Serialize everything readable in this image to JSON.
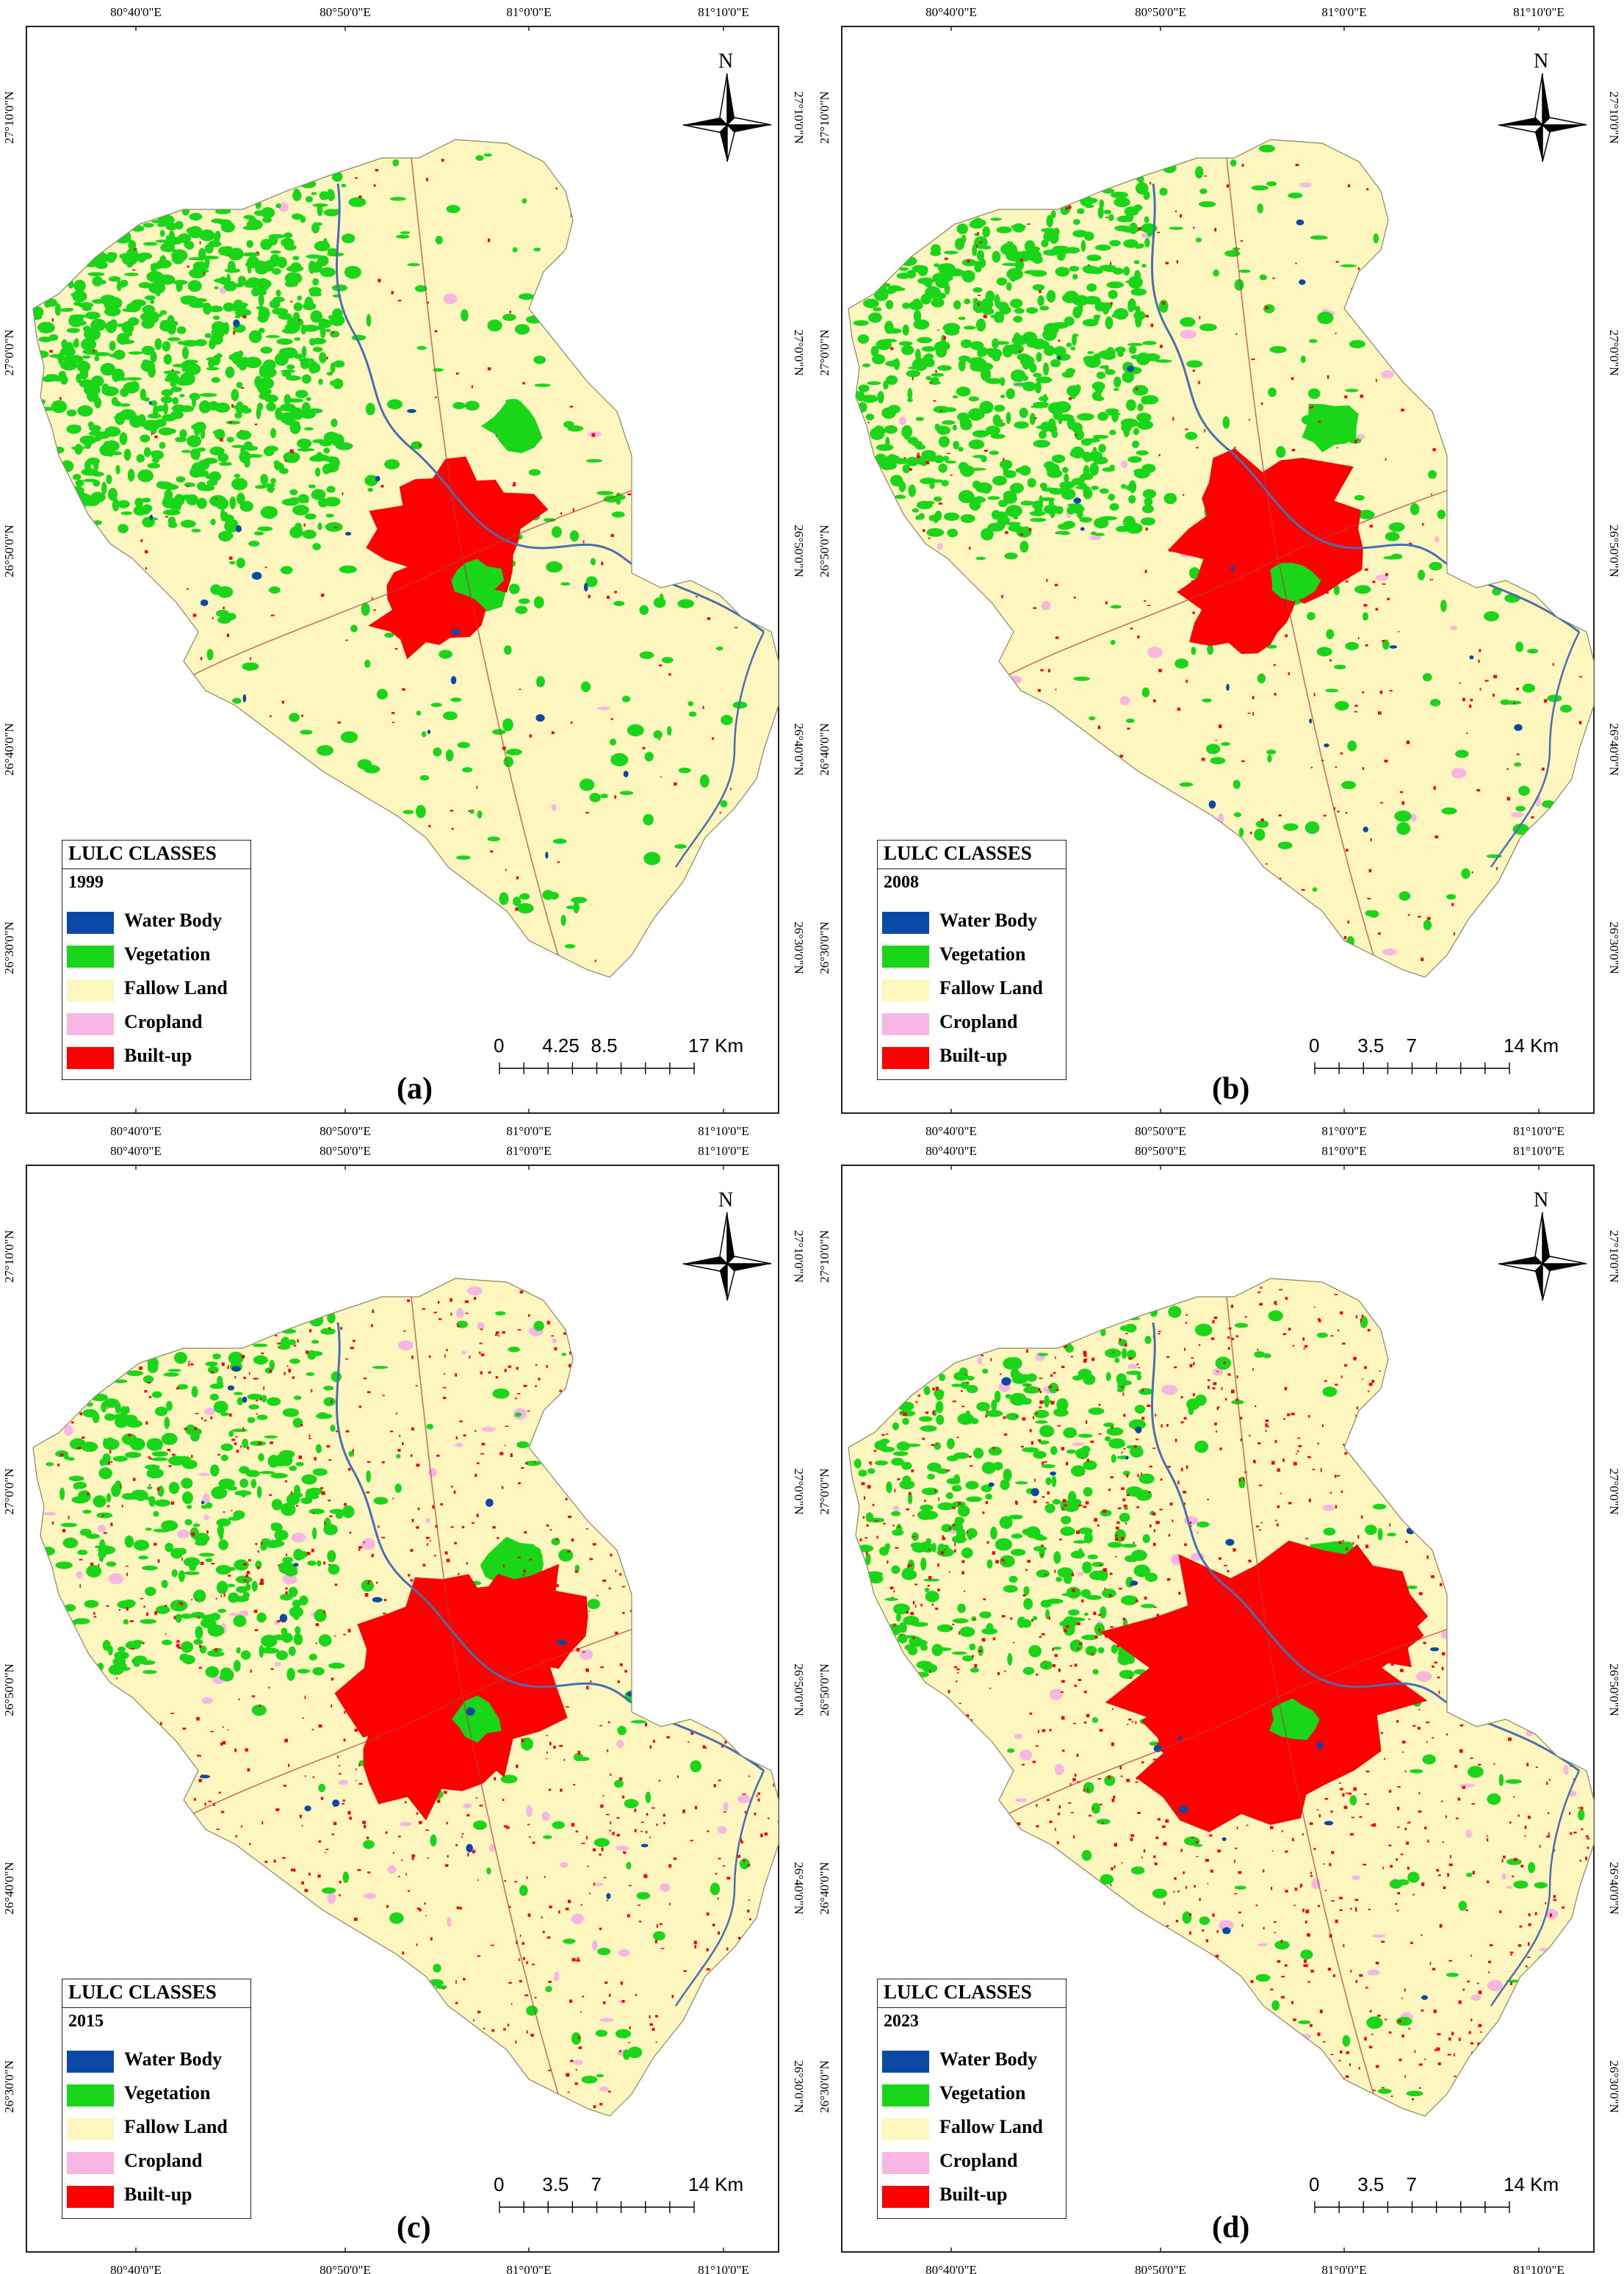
{
  "colors": {
    "water": "#0b49a6",
    "vegetation": "#19d619",
    "fallow": "#fdf6bf",
    "cropland": "#f7b6e4",
    "builtup": "#ff0000",
    "river": "#4a6fb0"
  },
  "legend": {
    "title": "LULC CLASSES",
    "classes": [
      {
        "label": "Water Body",
        "color_key": "water"
      },
      {
        "label": "Vegetation",
        "color_key": "vegetation"
      },
      {
        "label": "Fallow Land",
        "color_key": "fallow"
      },
      {
        "label": "Cropland",
        "color_key": "cropland"
      },
      {
        "label": "Built-up",
        "color_key": "builtup"
      }
    ]
  },
  "axes": {
    "lon_labels": [
      "80°40'0\"E",
      "80°50'0\"E",
      "81°0'0\"E",
      "81°10'0\"E"
    ],
    "lat_labels": [
      "27°10'0\"N",
      "27°0'0\"N",
      "26°50'0\"N",
      "26°40'0\"N",
      "26°30'0\"N"
    ]
  },
  "north_label": "N",
  "panels": [
    {
      "id": "a",
      "year": "1999",
      "label": "(a)",
      "scale": {
        "ticks": [
          "0",
          "4.25",
          "8.5",
          "17 Km"
        ]
      },
      "cover": {
        "vegetation": 0.45,
        "builtup_core": 0.25,
        "builtup_scatter": 0.06,
        "cropland": 0.01
      }
    },
    {
      "id": "b",
      "year": "2008",
      "label": "(b)",
      "scale": {
        "ticks": [
          "0",
          "3.5",
          "7",
          "14 Km"
        ]
      },
      "cover": {
        "vegetation": 0.4,
        "builtup_core": 0.35,
        "builtup_scatter": 0.1,
        "cropland": 0.06
      }
    },
    {
      "id": "c",
      "year": "2015",
      "label": "(c)",
      "scale": {
        "ticks": [
          "0",
          "3.5",
          "7",
          "14 Km"
        ]
      },
      "cover": {
        "vegetation": 0.22,
        "builtup_core": 0.55,
        "builtup_scatter": 0.3,
        "cropland": 0.12
      }
    },
    {
      "id": "d",
      "year": "2023",
      "label": "(d)",
      "scale": {
        "ticks": [
          "0",
          "3.5",
          "7",
          "14 Km"
        ]
      },
      "cover": {
        "vegetation": 0.22,
        "builtup_core": 0.85,
        "builtup_scatter": 0.42,
        "cropland": 0.1
      }
    }
  ]
}
